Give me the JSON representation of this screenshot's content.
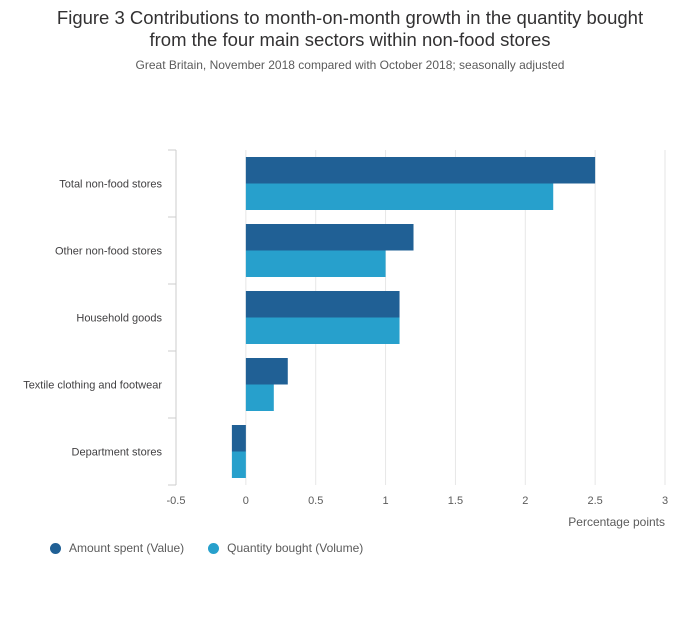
{
  "chart_data": {
    "type": "bar",
    "orientation": "horizontal",
    "title_line1": "Figure 3 Contributions to month-on-month growth in the quantity bought",
    "title_line2": "from the four main sectors within non-food stores",
    "subtitle": "Great Britain, November 2018 compared with October 2018; seasonally adjusted",
    "categories": [
      "Total non-food stores",
      "Other non-food stores",
      "Household goods",
      "Textile clothing and footwear",
      "Department stores"
    ],
    "series": [
      {
        "name": "Amount spent (Value)",
        "color": "#206095",
        "values": [
          2.5,
          1.2,
          1.1,
          0.3,
          -0.1
        ]
      },
      {
        "name": "Quantity bought (Volume)",
        "color": "#27a0cc",
        "values": [
          2.2,
          1.0,
          1.1,
          0.2,
          -0.1
        ]
      }
    ],
    "xlabel": "Percentage points",
    "xlim": [
      -0.5,
      3
    ],
    "xticks": [
      "-0.5",
      "0",
      "0.5",
      "1",
      "1.5",
      "2",
      "2.5",
      "3"
    ],
    "grid": true,
    "legend_position": "bottom-left"
  }
}
